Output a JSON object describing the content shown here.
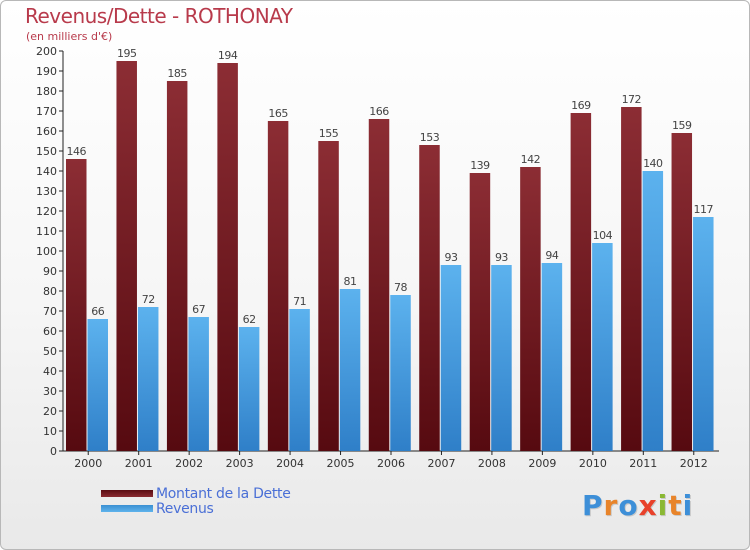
{
  "chart_data": {
    "type": "bar",
    "title": "Revenus/Dette - ROTHONAY",
    "subtitle": "(en milliers d'€)",
    "categories": [
      "2000",
      "2001",
      "2002",
      "2003",
      "2004",
      "2005",
      "2006",
      "2007",
      "2008",
      "2009",
      "2010",
      "2011",
      "2012"
    ],
    "series": [
      {
        "name": "Montant de la Dette",
        "color": "#7a1f26",
        "values": [
          146,
          195,
          185,
          194,
          165,
          155,
          166,
          153,
          139,
          142,
          169,
          172,
          159
        ]
      },
      {
        "name": "Revenus",
        "color": "#4aa3e6",
        "values": [
          66,
          72,
          67,
          62,
          71,
          81,
          78,
          93,
          93,
          94,
          104,
          140,
          117
        ]
      }
    ],
    "ylim": [
      0,
      200
    ],
    "y_ticks": [
      0,
      10,
      20,
      30,
      40,
      50,
      60,
      70,
      80,
      90,
      100,
      110,
      120,
      130,
      140,
      150,
      160,
      170,
      180,
      190,
      200
    ],
    "grid": false,
    "legend_position": "bottom-left"
  },
  "logo": {
    "text": "Proxiti"
  }
}
